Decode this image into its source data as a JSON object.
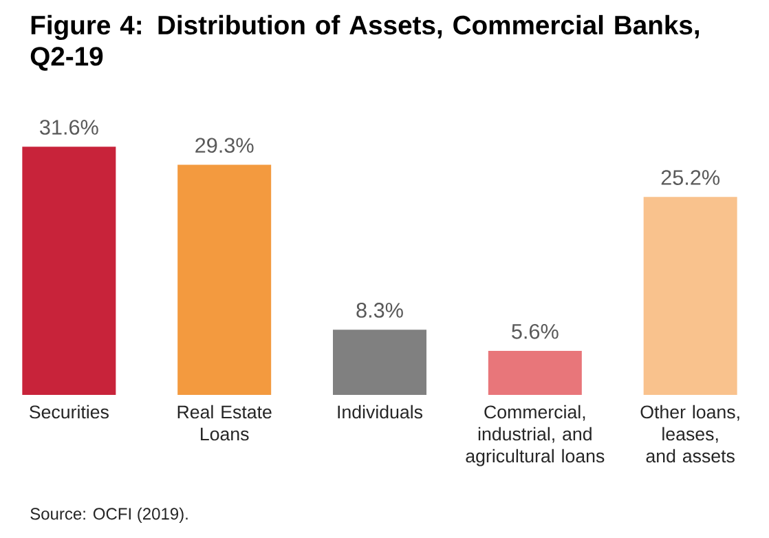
{
  "chart_data": {
    "type": "bar",
    "title": "Figure 4: Distribution of Assets, Commercial Banks, Q2-19",
    "categories": [
      "Securities",
      "Real Estate Loans",
      "Individuals",
      "Commercial, industrial, and agricultural loans",
      "Other loans, leases, and assets"
    ],
    "values": [
      31.6,
      29.3,
      8.3,
      5.6,
      25.2
    ],
    "value_labels": [
      "31.6%",
      "29.3%",
      "8.3%",
      "5.6%",
      "25.2%"
    ],
    "colors": [
      "#c8233a",
      "#f39a3f",
      "#808080",
      "#e8767a",
      "#f9c28d"
    ],
    "annotations": [
      "Source: OCFI (2019)."
    ]
  }
}
